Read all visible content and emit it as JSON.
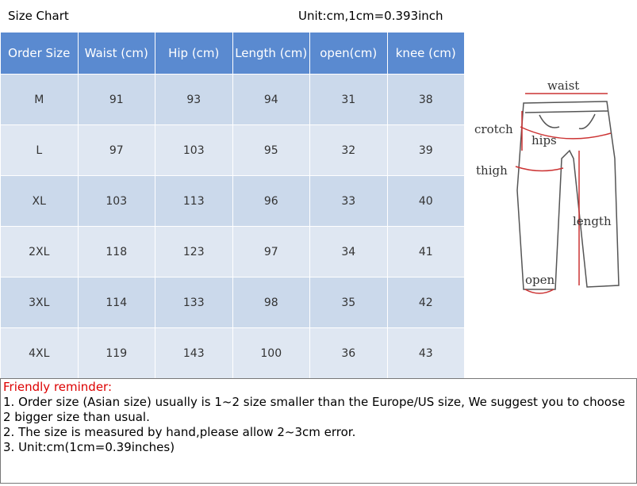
{
  "header": {
    "title": "Size Chart",
    "unit": "Unit:cm,1cm=0.393inch"
  },
  "table": {
    "columns": [
      "Order Size",
      "Waist (cm)",
      "Hip (cm)",
      "Length (cm)",
      "open(cm)",
      "knee (cm)"
    ],
    "rows": [
      [
        "M",
        91,
        93,
        94,
        31,
        38
      ],
      [
        "L",
        97,
        103,
        95,
        32,
        39
      ],
      [
        "XL",
        103,
        113,
        96,
        33,
        40
      ],
      [
        "2XL",
        118,
        123,
        97,
        34,
        41
      ],
      [
        "3XL",
        114,
        133,
        98,
        35,
        42
      ],
      [
        "4XL",
        119,
        143,
        100,
        36,
        43
      ]
    ]
  },
  "diagram": {
    "waist": "waist",
    "crotch": "crotch",
    "hips": "hips",
    "thigh": "thigh",
    "length": "length",
    "open": "open"
  },
  "reminder": {
    "title": "Friendly reminder:",
    "items": [
      "1. Order size (Asian size) usually is 1~2 size smaller than the Europe/US size, We suggest you to choose 2 bigger size than usual.",
      "2. The size is measured by hand,please allow 2~3cm error.",
      "3. Unit:cm(1cm=0.39inches)"
    ]
  }
}
